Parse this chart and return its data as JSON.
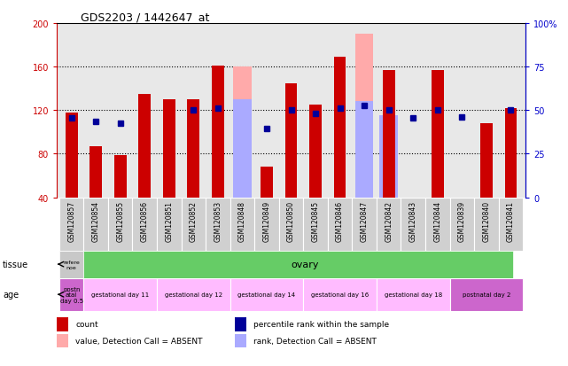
{
  "title": "GDS2203 / 1442647_at",
  "samples": [
    "GSM120857",
    "GSM120854",
    "GSM120855",
    "GSM120856",
    "GSM120851",
    "GSM120852",
    "GSM120853",
    "GSM120848",
    "GSM120849",
    "GSM120850",
    "GSM120845",
    "GSM120846",
    "GSM120847",
    "GSM120842",
    "GSM120843",
    "GSM120844",
    "GSM120839",
    "GSM120840",
    "GSM120841"
  ],
  "count_values": [
    118,
    87,
    79,
    135,
    130,
    130,
    161,
    null,
    68,
    145,
    125,
    169,
    null,
    157,
    null,
    157,
    null,
    108,
    122
  ],
  "percentile_values": [
    113,
    110,
    108,
    null,
    null,
    120,
    122,
    null,
    103,
    120,
    117,
    122,
    124,
    120,
    113,
    120,
    114,
    null,
    120
  ],
  "absent_count_values": [
    null,
    null,
    null,
    null,
    null,
    null,
    null,
    160,
    null,
    null,
    null,
    null,
    190,
    null,
    null,
    null,
    null,
    null,
    null
  ],
  "absent_rank_values": [
    null,
    null,
    null,
    null,
    null,
    null,
    null,
    130,
    null,
    null,
    null,
    null,
    128,
    115,
    null,
    null,
    null,
    null,
    null
  ],
  "ylim_min": 40,
  "ylim_max": 200,
  "yticks_left": [
    40,
    80,
    120,
    160,
    200
  ],
  "yticks_right": [
    0,
    25,
    50,
    75,
    100
  ],
  "ylabel_left_color": "#cc0000",
  "ylabel_right_color": "#0000cc",
  "count_color": "#cc0000",
  "percentile_color": "#000099",
  "absent_count_color": "#ffaaaa",
  "absent_rank_color": "#aaaaff",
  "tissue_label": "tissue",
  "age_label": "age",
  "reference_label": "refere\nnoe",
  "tissue_ovary": "ovary",
  "tissue_ref_color": "#c8c8c8",
  "tissue_ovary_color": "#66cc66",
  "age_groups": [
    {
      "label": "postn\natal\nday 0.5",
      "color": "#cc66cc",
      "n_samples": 1
    },
    {
      "label": "gestational day 11",
      "color": "#ffbbff",
      "n_samples": 3
    },
    {
      "label": "gestational day 12",
      "color": "#ffbbff",
      "n_samples": 3
    },
    {
      "label": "gestational day 14",
      "color": "#ffbbff",
      "n_samples": 3
    },
    {
      "label": "gestational day 16",
      "color": "#ffbbff",
      "n_samples": 3
    },
    {
      "label": "gestational day 18",
      "color": "#ffbbff",
      "n_samples": 3
    },
    {
      "label": "postnatal day 2",
      "color": "#cc66cc",
      "n_samples": 3
    }
  ],
  "legend_items": [
    {
      "label": "count",
      "color": "#cc0000"
    },
    {
      "label": "percentile rank within the sample",
      "color": "#000099"
    },
    {
      "label": "value, Detection Call = ABSENT",
      "color": "#ffaaaa"
    },
    {
      "label": "rank, Detection Call = ABSENT",
      "color": "#aaaaff"
    }
  ],
  "bg_color": "#ffffff",
  "axis_bg_color": "#e8e8e8",
  "sample_box_color": "#d0d0d0",
  "bar_width": 0.5
}
